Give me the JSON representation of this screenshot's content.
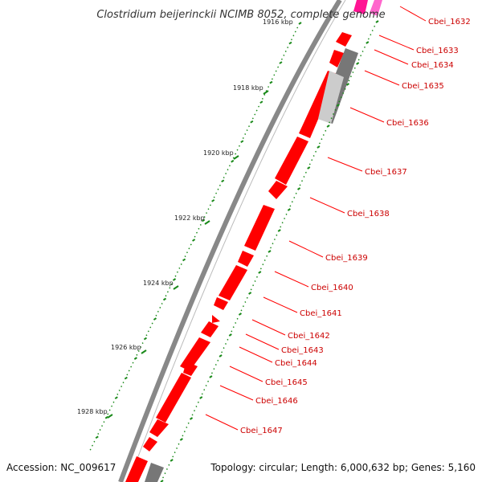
{
  "title": "Clostridium beijerinckii NCIMB 8052, complete genome",
  "partial_tick_label": "1916 kbp",
  "footer": {
    "accession": "Accession: NC_009617",
    "summary": "Topology: circular; Length: 6,000,632 bp; Genes: 5,160"
  },
  "ticks": [
    {
      "label": "1918 kbp"
    },
    {
      "label": "1920 kbp"
    },
    {
      "label": "1922 kbp"
    },
    {
      "label": "1924 kbp"
    },
    {
      "label": "1926 kbp"
    },
    {
      "label": "1928 kbp"
    }
  ],
  "genes": [
    {
      "label": "Cbei_1632",
      "strand": "plus",
      "color": "#ff1493"
    },
    {
      "label": "Cbei_1633",
      "strand": "plus",
      "color": "#ff0000"
    },
    {
      "label": "Cbei_1634",
      "strand": "plus",
      "color": "#ff0000"
    },
    {
      "label": "Cbei_1635",
      "strand": "plus",
      "color": "#ff0000"
    },
    {
      "label": "Cbei_1636",
      "strand": "plus",
      "color": "#ff0000"
    },
    {
      "label": "Cbei_1637",
      "strand": "plus",
      "color": "#ff0000"
    },
    {
      "label": "Cbei_1638",
      "strand": "plus",
      "color": "#ff0000"
    },
    {
      "label": "Cbei_1639",
      "strand": "plus",
      "color": "#ff0000"
    },
    {
      "label": "Cbei_1640",
      "strand": "plus",
      "color": "#ff0000"
    },
    {
      "label": "Cbei_1641",
      "strand": "plus",
      "color": "#ff0000"
    },
    {
      "label": "Cbei_1642",
      "strand": "plus",
      "color": "#ff0000"
    },
    {
      "label": "Cbei_1643",
      "strand": "plus",
      "color": "#ff0000"
    },
    {
      "label": "Cbei_1644",
      "strand": "plus",
      "color": "#ff0000"
    },
    {
      "label": "Cbei_1645",
      "strand": "plus",
      "color": "#ff0000"
    },
    {
      "label": "Cbei_1646",
      "strand": "plus",
      "color": "#ff0000"
    },
    {
      "label": "Cbei_1647",
      "strand": "plus",
      "color": "#ff0000"
    }
  ],
  "colors": {
    "backbone": "#808080",
    "gene": "#ff0000",
    "gene_highlight": "#ff1493",
    "tick": "#1a8a1a",
    "label_line": "#ff0000"
  }
}
